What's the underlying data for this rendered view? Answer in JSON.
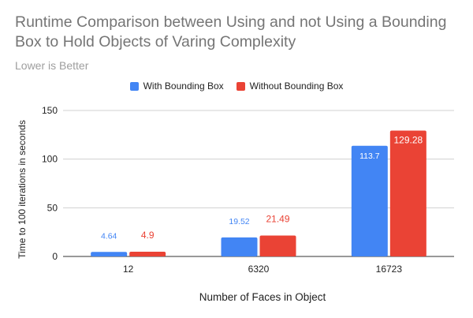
{
  "chart_data": {
    "type": "bar",
    "title": "Runtime Comparison between Using and not Using a Bounding Box to Hold Objects of Varing Complexity",
    "subtitle": "Lower is Better",
    "xlabel": "Number of Faces in Object",
    "ylabel": "Time to 100 iterations in seconds",
    "categories": [
      "12",
      "6320",
      "16723"
    ],
    "series": [
      {
        "name": "With Bounding Box",
        "color": "#4285f4",
        "values": [
          4.64,
          19.52,
          113.7
        ],
        "labels": [
          "4.64",
          "19.52",
          "113.7"
        ]
      },
      {
        "name": "Without Bounding Box",
        "color": "#ea4335",
        "values": [
          4.9,
          21.49,
          129.28
        ],
        "labels": [
          "4.9",
          "21.49",
          "129.28"
        ]
      }
    ],
    "ylim": [
      0,
      150
    ],
    "yticks": [
      "0",
      "50",
      "100",
      "150"
    ],
    "grid": true,
    "legend_position": "top"
  }
}
